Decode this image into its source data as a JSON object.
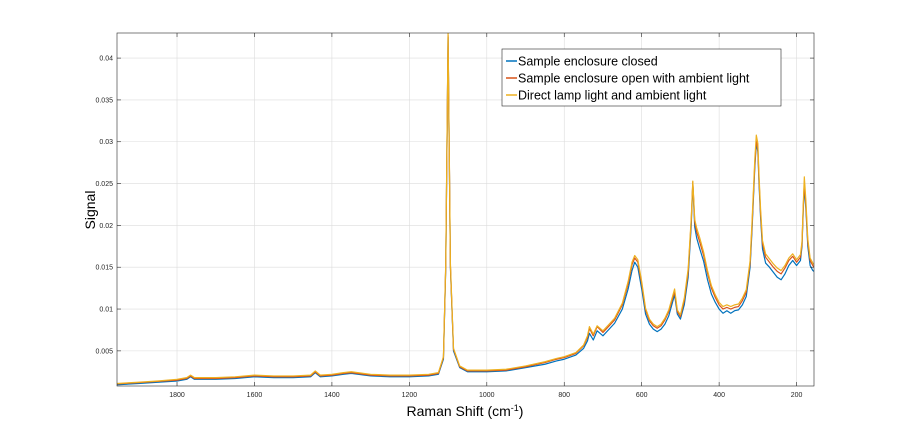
{
  "chart_data": {
    "type": "line",
    "title": "",
    "xlabel": "Raman Shift (cm",
    "xlabel_superscript": "-1",
    "xlabel_suffix": ")",
    "ylabel": "Signal",
    "x_reversed": true,
    "xlim": [
      1955,
      155
    ],
    "ylim": [
      0.0008,
      0.043
    ],
    "grid": true,
    "legend_position": "top-right",
    "x_ticks": [
      1800,
      1600,
      1400,
      1200,
      1000,
      800,
      600,
      400,
      200
    ],
    "y_ticks": [
      0.005,
      0.01,
      0.015,
      0.02,
      0.025,
      0.03,
      0.035,
      0.04
    ],
    "y_tick_labels": [
      "0.005",
      "0.01",
      "0.015",
      "0.02",
      "0.025",
      "0.03",
      "0.035",
      "0.04"
    ],
    "series": [
      {
        "name": "Sample enclosure closed",
        "color": "#0072BD",
        "x": [
          1955,
          1900,
          1850,
          1800,
          1775,
          1765,
          1755,
          1700,
          1650,
          1600,
          1550,
          1500,
          1455,
          1443,
          1430,
          1400,
          1370,
          1350,
          1300,
          1250,
          1200,
          1150,
          1125,
          1112,
          1106,
          1100,
          1094,
          1086,
          1070,
          1050,
          1000,
          950,
          900,
          850,
          820,
          800,
          770,
          750,
          740,
          735,
          725,
          715,
          700,
          690,
          670,
          650,
          635,
          625,
          618,
          610,
          600,
          590,
          580,
          570,
          560,
          550,
          540,
          530,
          515,
          508,
          500,
          490,
          480,
          472,
          468,
          463,
          458,
          450,
          440,
          430,
          420,
          410,
          400,
          390,
          380,
          370,
          360,
          350,
          340,
          330,
          320,
          315,
          308,
          304,
          300,
          297,
          293,
          288,
          280,
          270,
          260,
          250,
          240,
          230,
          220,
          210,
          200,
          190,
          186,
          183,
          180,
          176,
          171,
          165,
          158,
          155
        ],
        "y": [
          0.00095,
          0.0011,
          0.00125,
          0.0014,
          0.0016,
          0.0019,
          0.0016,
          0.0016,
          0.0017,
          0.0019,
          0.0018,
          0.0018,
          0.0019,
          0.0024,
          0.0019,
          0.002,
          0.0022,
          0.0023,
          0.002,
          0.0019,
          0.0019,
          0.002,
          0.0022,
          0.004,
          0.015,
          0.0425,
          0.015,
          0.005,
          0.003,
          0.0025,
          0.0025,
          0.0026,
          0.003,
          0.0034,
          0.0038,
          0.004,
          0.0045,
          0.0053,
          0.0062,
          0.0071,
          0.0063,
          0.0074,
          0.0068,
          0.0073,
          0.0083,
          0.01,
          0.0124,
          0.0146,
          0.0156,
          0.015,
          0.0124,
          0.0094,
          0.0082,
          0.0076,
          0.0073,
          0.0076,
          0.0082,
          0.0092,
          0.0117,
          0.0094,
          0.0088,
          0.0105,
          0.0138,
          0.02,
          0.025,
          0.0198,
          0.0185,
          0.0172,
          0.0157,
          0.0135,
          0.0118,
          0.0108,
          0.01,
          0.0095,
          0.0098,
          0.0095,
          0.0098,
          0.0099,
          0.0105,
          0.0115,
          0.015,
          0.0195,
          0.0268,
          0.0298,
          0.0288,
          0.025,
          0.021,
          0.0172,
          0.0155,
          0.015,
          0.0144,
          0.0138,
          0.0135,
          0.0142,
          0.0152,
          0.0158,
          0.0152,
          0.0158,
          0.0175,
          0.0215,
          0.0247,
          0.022,
          0.0175,
          0.0152,
          0.0146,
          0.0145
        ]
      },
      {
        "name": "Sample enclosure open with ambient light",
        "color": "#D95319",
        "x": [
          1955,
          1900,
          1850,
          1800,
          1775,
          1765,
          1755,
          1700,
          1650,
          1600,
          1550,
          1500,
          1455,
          1443,
          1430,
          1400,
          1370,
          1350,
          1300,
          1250,
          1200,
          1150,
          1125,
          1112,
          1106,
          1100,
          1094,
          1086,
          1070,
          1050,
          1000,
          950,
          900,
          850,
          820,
          800,
          770,
          750,
          740,
          735,
          725,
          715,
          700,
          690,
          670,
          650,
          635,
          625,
          618,
          610,
          600,
          590,
          580,
          570,
          560,
          550,
          540,
          530,
          515,
          508,
          500,
          490,
          480,
          472,
          468,
          463,
          458,
          450,
          440,
          430,
          420,
          410,
          400,
          390,
          380,
          370,
          360,
          350,
          340,
          330,
          320,
          315,
          308,
          304,
          300,
          297,
          293,
          288,
          280,
          270,
          260,
          250,
          240,
          230,
          220,
          210,
          200,
          190,
          186,
          183,
          180,
          176,
          171,
          165,
          158,
          155
        ],
        "y": [
          0.00105,
          0.0012,
          0.00135,
          0.0015,
          0.0017,
          0.002,
          0.0017,
          0.0017,
          0.0018,
          0.002,
          0.0019,
          0.0019,
          0.002,
          0.0025,
          0.002,
          0.0021,
          0.0023,
          0.0024,
          0.0021,
          0.002,
          0.002,
          0.0021,
          0.0023,
          0.0042,
          0.0152,
          0.0427,
          0.0152,
          0.0052,
          0.0031,
          0.0026,
          0.0026,
          0.0027,
          0.0031,
          0.0036,
          0.004,
          0.0042,
          0.0047,
          0.0056,
          0.0066,
          0.0077,
          0.0068,
          0.0079,
          0.0072,
          0.0077,
          0.0087,
          0.0105,
          0.013,
          0.0153,
          0.0161,
          0.0156,
          0.013,
          0.0099,
          0.0086,
          0.008,
          0.0077,
          0.008,
          0.0087,
          0.0097,
          0.0121,
          0.0097,
          0.0091,
          0.011,
          0.0144,
          0.0206,
          0.0252,
          0.0204,
          0.0192,
          0.018,
          0.0164,
          0.0143,
          0.0125,
          0.0114,
          0.0105,
          0.01,
          0.0102,
          0.01,
          0.0102,
          0.0103,
          0.011,
          0.012,
          0.0155,
          0.02,
          0.0272,
          0.0301,
          0.0292,
          0.0255,
          0.0215,
          0.0178,
          0.0162,
          0.0156,
          0.015,
          0.0145,
          0.0142,
          0.0149,
          0.0158,
          0.0163,
          0.0156,
          0.0162,
          0.0178,
          0.0218,
          0.0252,
          0.0225,
          0.018,
          0.0158,
          0.0152,
          0.015
        ]
      },
      {
        "name": "Direct lamp light and ambient light",
        "color": "#EDB120",
        "x": [
          1955,
          1900,
          1850,
          1800,
          1775,
          1765,
          1755,
          1700,
          1650,
          1600,
          1550,
          1500,
          1455,
          1443,
          1430,
          1400,
          1370,
          1350,
          1300,
          1250,
          1200,
          1150,
          1125,
          1112,
          1106,
          1100,
          1094,
          1086,
          1070,
          1050,
          1000,
          950,
          900,
          850,
          820,
          800,
          770,
          750,
          740,
          735,
          725,
          715,
          700,
          690,
          670,
          650,
          635,
          625,
          618,
          610,
          600,
          590,
          580,
          570,
          560,
          550,
          540,
          530,
          515,
          508,
          500,
          490,
          480,
          472,
          468,
          463,
          458,
          450,
          440,
          430,
          420,
          410,
          400,
          390,
          380,
          370,
          360,
          350,
          340,
          330,
          320,
          315,
          308,
          304,
          300,
          297,
          293,
          288,
          280,
          270,
          260,
          250,
          240,
          230,
          220,
          210,
          200,
          190,
          186,
          183,
          180,
          176,
          171,
          165,
          158,
          155
        ],
        "y": [
          0.0011,
          0.00125,
          0.0014,
          0.0016,
          0.0018,
          0.0021,
          0.0018,
          0.0018,
          0.0019,
          0.0021,
          0.002,
          0.002,
          0.0021,
          0.0026,
          0.0021,
          0.0022,
          0.0024,
          0.0025,
          0.0022,
          0.0021,
          0.0021,
          0.0022,
          0.0024,
          0.0043,
          0.0155,
          0.043,
          0.0155,
          0.0053,
          0.0032,
          0.0027,
          0.0027,
          0.0028,
          0.0032,
          0.0037,
          0.0041,
          0.0043,
          0.0048,
          0.0057,
          0.0068,
          0.0079,
          0.007,
          0.008,
          0.0074,
          0.0079,
          0.0089,
          0.0107,
          0.0133,
          0.0156,
          0.0164,
          0.0159,
          0.0133,
          0.0101,
          0.0088,
          0.0082,
          0.0079,
          0.0082,
          0.0089,
          0.0099,
          0.0124,
          0.0099,
          0.0093,
          0.0113,
          0.0148,
          0.0209,
          0.0253,
          0.0207,
          0.0197,
          0.0185,
          0.0168,
          0.0146,
          0.0128,
          0.0117,
          0.0108,
          0.0103,
          0.0105,
          0.0103,
          0.0105,
          0.0106,
          0.0113,
          0.0123,
          0.0158,
          0.0205,
          0.0278,
          0.0308,
          0.0298,
          0.026,
          0.022,
          0.0182,
          0.0166,
          0.016,
          0.0154,
          0.0149,
          0.0146,
          0.0152,
          0.0161,
          0.0166,
          0.0159,
          0.0165,
          0.0181,
          0.0222,
          0.0258,
          0.023,
          0.0184,
          0.0161,
          0.0155,
          0.0153
        ]
      }
    ]
  }
}
